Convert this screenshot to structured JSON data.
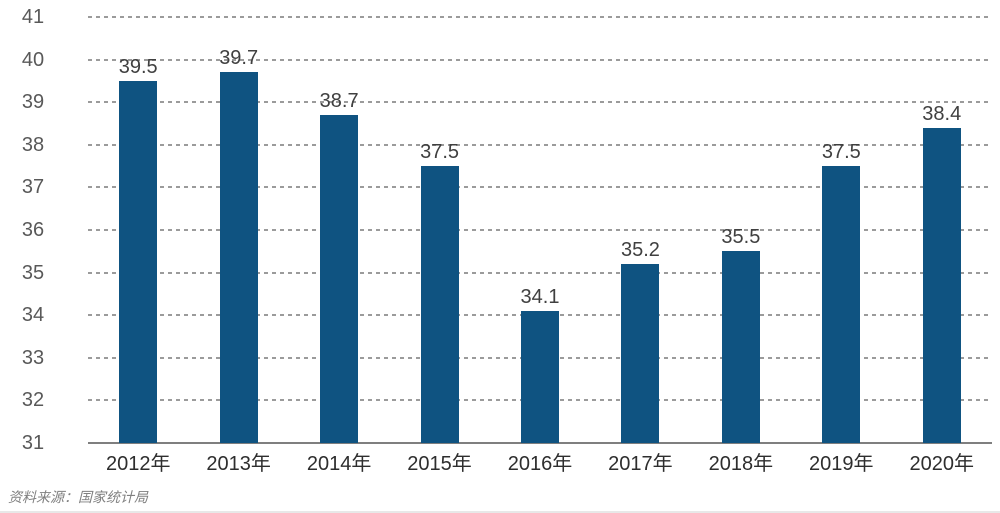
{
  "chart_data": {
    "type": "bar",
    "title": "",
    "categories": [
      "2012年",
      "2013年",
      "2014年",
      "2015年",
      "2016年",
      "2017年",
      "2018年",
      "2019年",
      "2020年"
    ],
    "values": [
      39.5,
      39.7,
      38.7,
      37.5,
      34.1,
      35.2,
      35.5,
      37.5,
      38.4
    ],
    "value_labels": [
      "39.5",
      "39.7",
      "38.7",
      "37.5",
      "34.1",
      "35.2",
      "35.5",
      "37.5",
      "38.4"
    ],
    "xlabel": "",
    "ylabel": "",
    "ylim": [
      31,
      41
    ],
    "yticks": [
      41,
      40,
      39,
      38,
      37,
      36,
      35,
      34,
      33,
      32,
      31
    ],
    "grid": "horizontal-dashed",
    "legend": "none",
    "bar_color": "#0F5381",
    "gridline_color": "#9b9b9b",
    "axis_line_color": "#7f7f7f",
    "source_note": "资料来源：国家统计局"
  }
}
